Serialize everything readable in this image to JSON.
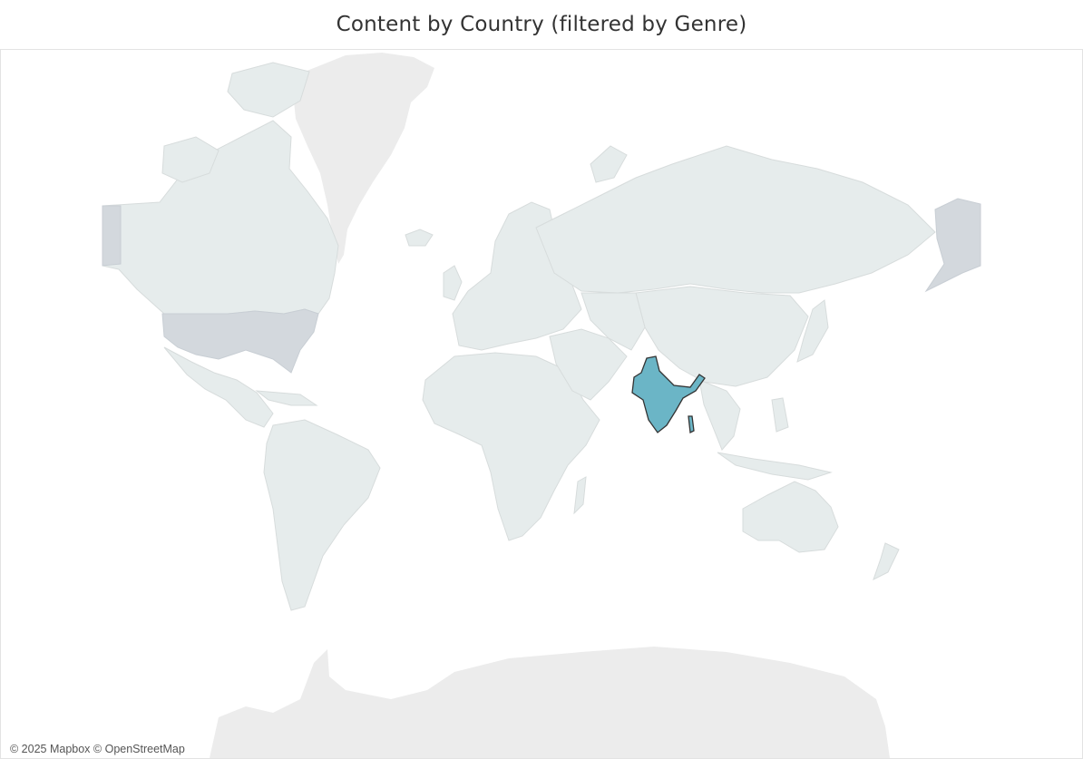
{
  "title": "Content by Country (filtered by Genre)",
  "attribution": "© 2025 Mapbox © OpenStreetMap",
  "highlighted_country": "India",
  "colors": {
    "highlight": "#6bb5c6",
    "highlight_stroke": "#333333",
    "land": "#e6ecec",
    "land_dim": "#e8e8e8",
    "polar": "#ececec",
    "usa": "#d3d8dd",
    "border": "#d7dcdc",
    "frame": "#e3e3e3"
  }
}
